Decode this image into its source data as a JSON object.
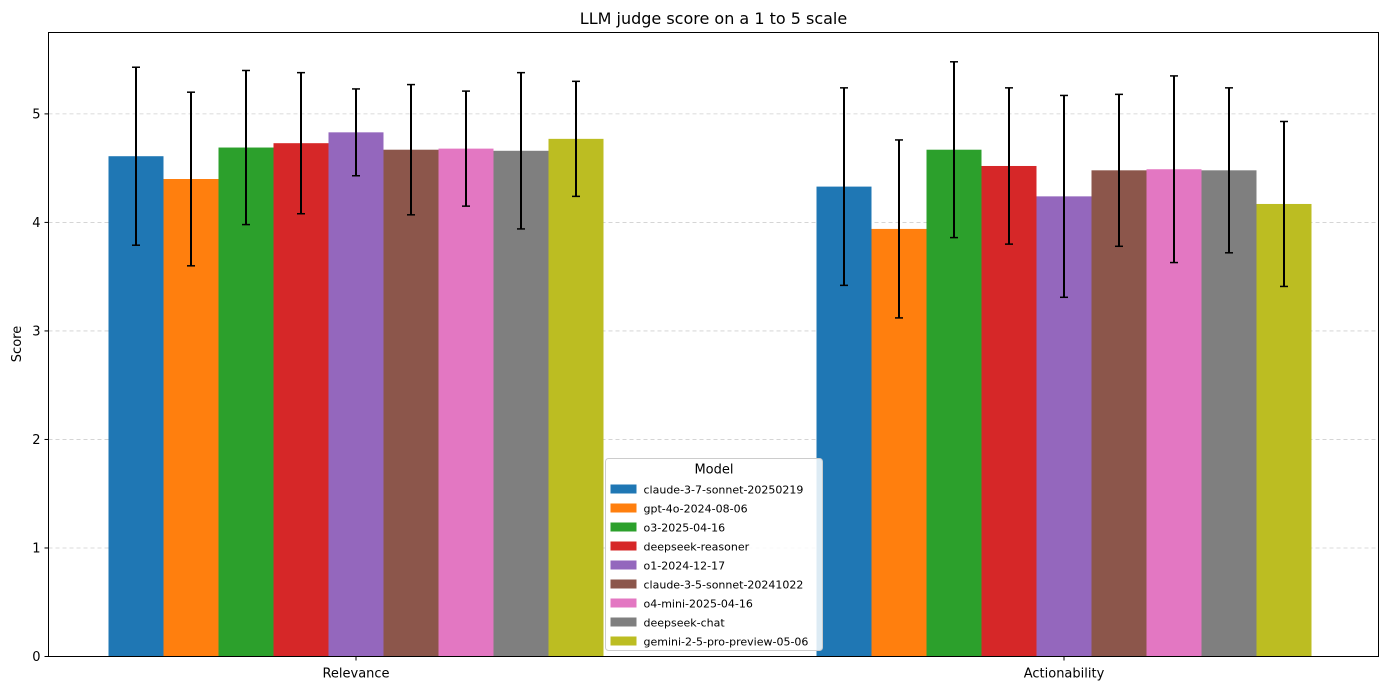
{
  "chart_data": {
    "type": "bar",
    "title": "LLM judge score on a 1 to 5 scale",
    "xlabel": "",
    "ylabel": "Score",
    "ylim": [
      0,
      5.75
    ],
    "yticks": [
      0,
      1,
      2,
      3,
      4,
      5
    ],
    "grid": "y-dashed",
    "legend_title": "Model",
    "legend_position": "lower-center",
    "categories": [
      "Relevance",
      "Actionability"
    ],
    "series": [
      {
        "name": "claude-3-7-sonnet-20250219",
        "color": "#1f77b4",
        "values": [
          4.61,
          4.33
        ],
        "errors": [
          0.82,
          0.91
        ]
      },
      {
        "name": "gpt-4o-2024-08-06",
        "color": "#ff7f0e",
        "values": [
          4.4,
          3.94
        ],
        "errors": [
          0.8,
          0.82
        ]
      },
      {
        "name": "o3-2025-04-16",
        "color": "#2ca02c",
        "values": [
          4.69,
          4.67
        ],
        "errors": [
          0.71,
          0.81
        ]
      },
      {
        "name": "deepseek-reasoner",
        "color": "#d62728",
        "values": [
          4.73,
          4.52
        ],
        "errors": [
          0.65,
          0.72
        ]
      },
      {
        "name": "o1-2024-12-17",
        "color": "#9467bd",
        "values": [
          4.83,
          4.24
        ],
        "errors": [
          0.4,
          0.93
        ]
      },
      {
        "name": "claude-3-5-sonnet-20241022",
        "color": "#8c564b",
        "values": [
          4.67,
          4.48
        ],
        "errors": [
          0.6,
          0.7
        ]
      },
      {
        "name": "o4-mini-2025-04-16",
        "color": "#e377c2",
        "values": [
          4.68,
          4.49
        ],
        "errors": [
          0.53,
          0.86
        ]
      },
      {
        "name": "deepseek-chat",
        "color": "#7f7f7f",
        "values": [
          4.66,
          4.48
        ],
        "errors": [
          0.72,
          0.76
        ]
      },
      {
        "name": "gemini-2-5-pro-preview-05-06",
        "color": "#bcbd22",
        "values": [
          4.77,
          4.17
        ],
        "errors": [
          0.53,
          0.76
        ]
      }
    ]
  }
}
